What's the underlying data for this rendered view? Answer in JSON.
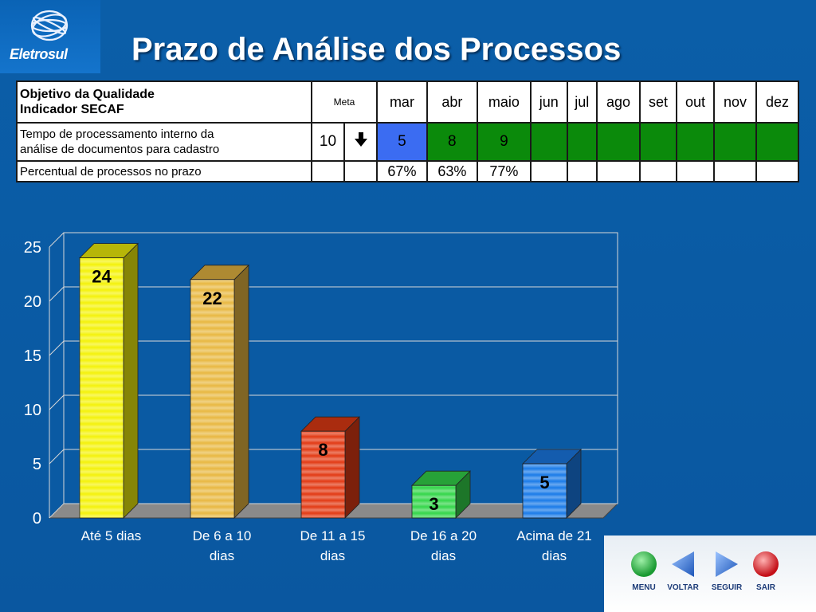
{
  "brand": {
    "logo_text": "Eletrosul"
  },
  "title": "Prazo de Análise dos Processos",
  "table": {
    "header": {
      "desc_line1": "Objetivo da Qualidade",
      "desc_line2": "Indicador SECAF",
      "meta": "Meta",
      "months": [
        "mar",
        "abr",
        "maio",
        "jun",
        "jul",
        "ago",
        "set",
        "out",
        "nov",
        "dez"
      ]
    },
    "row1": {
      "desc_line1": "Tempo de processamento interno da",
      "desc_line2": "análise de documentos para cadastro",
      "meta_value": "10",
      "meta_direction": "arrow-down-icon",
      "values": [
        "5",
        "8",
        "9",
        "",
        "",
        "",
        "",
        "",
        "",
        ""
      ],
      "cell_colors": [
        "#3b6cf2",
        "#0b8a0b",
        "#0b8a0b",
        "#0b8a0b",
        "#0b8a0b",
        "#0b8a0b",
        "#0b8a0b",
        "#0b8a0b",
        "#0b8a0b",
        "#0b8a0b"
      ]
    },
    "row2": {
      "desc": "Percentual de processos no prazo",
      "values": [
        "67%",
        "63%",
        "77%",
        "",
        "",
        "",
        "",
        "",
        "",
        ""
      ]
    }
  },
  "chart_data": {
    "type": "bar",
    "categories": [
      "Até 5 dias",
      "De 6 a 10 dias",
      "De 11 a 15 dias",
      "De 16 a 20 dias",
      "Acima de 21 dias"
    ],
    "category_lines": [
      [
        "Até 5 dias"
      ],
      [
        "De 6 a 10",
        "dias"
      ],
      [
        "De 11 a 15",
        "dias"
      ],
      [
        "De 16 a 20",
        "dias"
      ],
      [
        "Acima de 21",
        "dias"
      ]
    ],
    "values": [
      24,
      22,
      8,
      3,
      5
    ],
    "data_labels": [
      "24",
      "22",
      "8",
      "3",
      "5"
    ],
    "bar_colors": [
      "#f4f20a",
      "#e8b842",
      "#e23a14",
      "#34d64a",
      "#1a7be8"
    ],
    "ylim": [
      0,
      25
    ],
    "yticks": [
      "0",
      "5",
      "10",
      "15",
      "20",
      "25"
    ],
    "grid": true,
    "legend": "none"
  },
  "nav": [
    {
      "label": "MENU",
      "icon": "green-circle-icon",
      "color": "#22a33a"
    },
    {
      "label": "VOLTAR",
      "icon": "triangle-left-icon",
      "color": "#2f6fd0"
    },
    {
      "label": "SEGUIR",
      "icon": "triangle-right-icon",
      "color": "#2f6fd0"
    },
    {
      "label": "SAIR",
      "icon": "red-circle-icon",
      "color": "#d4141a"
    }
  ]
}
